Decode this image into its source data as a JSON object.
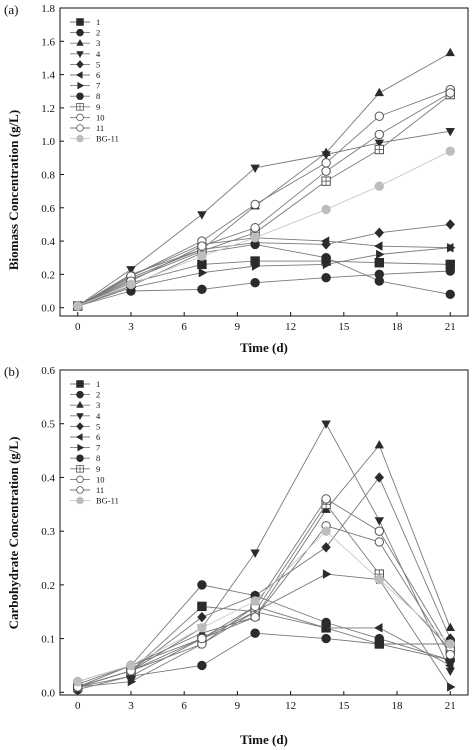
{
  "chart_data": [
    {
      "type": "line",
      "panel_label": "(a)",
      "xlabel": "Time (d)",
      "ylabel": "Biomass Concentration (g/L)",
      "xlim": [
        -1,
        22
      ],
      "ylim": [
        -0.05,
        1.8
      ],
      "xticks": [
        "0",
        "3",
        "6",
        "9",
        "12",
        "15",
        "18",
        "21"
      ],
      "yticks": [
        "0.0",
        "0.2",
        "0.4",
        "0.6",
        "0.8",
        "1.0",
        "1.2",
        "1.4",
        "1.6",
        "1.8"
      ],
      "legend_position": "top-left",
      "x": [
        0,
        3,
        7,
        10,
        14,
        17,
        21
      ],
      "series": [
        {
          "name": "1",
          "marker": "square",
          "color": "#2b2b2b",
          "values": [
            0.01,
            0.15,
            0.26,
            0.28,
            0.28,
            0.27,
            0.26
          ]
        },
        {
          "name": "2",
          "marker": "circle",
          "color": "#2b2b2b",
          "values": [
            0.01,
            0.1,
            0.11,
            0.15,
            0.18,
            0.2,
            0.22
          ]
        },
        {
          "name": "3",
          "marker": "triangle-up",
          "color": "#2b2b2b",
          "values": [
            0.01,
            0.2,
            0.35,
            0.61,
            0.93,
            1.29,
            1.53
          ]
        },
        {
          "name": "4",
          "marker": "triangle-down",
          "color": "#2b2b2b",
          "values": [
            0.01,
            0.23,
            0.56,
            0.84,
            0.92,
            0.99,
            1.06
          ]
        },
        {
          "name": "5",
          "marker": "diamond",
          "color": "#2b2b2b",
          "values": [
            0.01,
            0.18,
            0.35,
            0.39,
            0.38,
            0.45,
            0.5
          ]
        },
        {
          "name": "6",
          "marker": "triangle-left",
          "color": "#2b2b2b",
          "values": [
            0.01,
            0.19,
            0.38,
            0.42,
            0.4,
            0.37,
            0.36
          ]
        },
        {
          "name": "7",
          "marker": "triangle-right",
          "color": "#2b2b2b",
          "values": [
            0.01,
            0.12,
            0.21,
            0.25,
            0.26,
            0.32,
            0.36
          ]
        },
        {
          "name": "8",
          "marker": "circle",
          "color": "#2b2b2b",
          "values": [
            0.01,
            0.13,
            0.33,
            0.38,
            0.3,
            0.16,
            0.08
          ]
        },
        {
          "name": "9",
          "marker": "square-open",
          "color": "#555555",
          "values": [
            0.01,
            0.17,
            0.34,
            0.45,
            0.76,
            0.95,
            1.28
          ]
        },
        {
          "name": "10",
          "marker": "circle-open",
          "color": "#555555",
          "values": [
            0.01,
            0.19,
            0.4,
            0.62,
            0.87,
            1.15,
            1.31
          ]
        },
        {
          "name": "11",
          "marker": "circle-open",
          "color": "#555555",
          "values": [
            0.01,
            0.16,
            0.37,
            0.48,
            0.82,
            1.04,
            1.29
          ]
        },
        {
          "name": "BG-11",
          "marker": "circle-light",
          "color": "#bdbdbd",
          "values": [
            0.01,
            0.14,
            0.31,
            0.42,
            0.59,
            0.73,
            0.94
          ]
        }
      ]
    },
    {
      "type": "line",
      "panel_label": "(b)",
      "xlabel": "Time (d)",
      "ylabel": "Carbohydrate Concentration (g/L)",
      "xlim": [
        -1,
        22
      ],
      "ylim": [
        -0.005,
        0.6
      ],
      "xticks": [
        "0",
        "3",
        "6",
        "9",
        "12",
        "15",
        "18",
        "21"
      ],
      "yticks": [
        "0.0",
        "0.1",
        "0.2",
        "0.3",
        "0.4",
        "0.5",
        "0.6"
      ],
      "legend_position": "top-left",
      "x": [
        0,
        3,
        7,
        10,
        14,
        17,
        21
      ],
      "series": [
        {
          "name": "1",
          "marker": "square",
          "color": "#2b2b2b",
          "values": [
            0.01,
            0.04,
            0.16,
            0.15,
            0.12,
            0.09,
            0.09
          ]
        },
        {
          "name": "2",
          "marker": "circle",
          "color": "#2b2b2b",
          "values": [
            0.005,
            0.03,
            0.05,
            0.11,
            0.1,
            0.09,
            0.06
          ]
        },
        {
          "name": "3",
          "marker": "triangle-up",
          "color": "#2b2b2b",
          "values": [
            0.01,
            0.05,
            0.11,
            0.14,
            0.34,
            0.46,
            0.12
          ]
        },
        {
          "name": "4",
          "marker": "triangle-down",
          "color": "#2b2b2b",
          "values": [
            0.01,
            0.04,
            0.12,
            0.26,
            0.5,
            0.32,
            0.04
          ]
        },
        {
          "name": "5",
          "marker": "diamond",
          "color": "#2b2b2b",
          "values": [
            0.01,
            0.04,
            0.14,
            0.18,
            0.27,
            0.4,
            0.1
          ]
        },
        {
          "name": "6",
          "marker": "triangle-left",
          "color": "#2b2b2b",
          "values": [
            0.01,
            0.03,
            0.1,
            0.16,
            0.12,
            0.12,
            0.05
          ]
        },
        {
          "name": "7",
          "marker": "triangle-right",
          "color": "#2b2b2b",
          "values": [
            0.01,
            0.02,
            0.09,
            0.15,
            0.22,
            0.21,
            0.01
          ]
        },
        {
          "name": "8",
          "marker": "circle",
          "color": "#2b2b2b",
          "values": [
            0.015,
            0.05,
            0.2,
            0.18,
            0.13,
            0.1,
            0.06
          ]
        },
        {
          "name": "9",
          "marker": "square-open",
          "color": "#555555",
          "values": [
            0.01,
            0.04,
            0.1,
            0.15,
            0.35,
            0.22,
            0.08
          ]
        },
        {
          "name": "10",
          "marker": "circle-open",
          "color": "#555555",
          "values": [
            0.01,
            0.04,
            0.09,
            0.16,
            0.36,
            0.3,
            0.08
          ]
        },
        {
          "name": "11",
          "marker": "circle-open",
          "color": "#555555",
          "values": [
            0.02,
            0.05,
            0.1,
            0.14,
            0.31,
            0.28,
            0.07
          ]
        },
        {
          "name": "BG-11",
          "marker": "circle-light",
          "color": "#bdbdbd",
          "values": [
            0.02,
            0.05,
            0.12,
            0.17,
            0.3,
            0.21,
            0.09
          ]
        }
      ]
    }
  ]
}
